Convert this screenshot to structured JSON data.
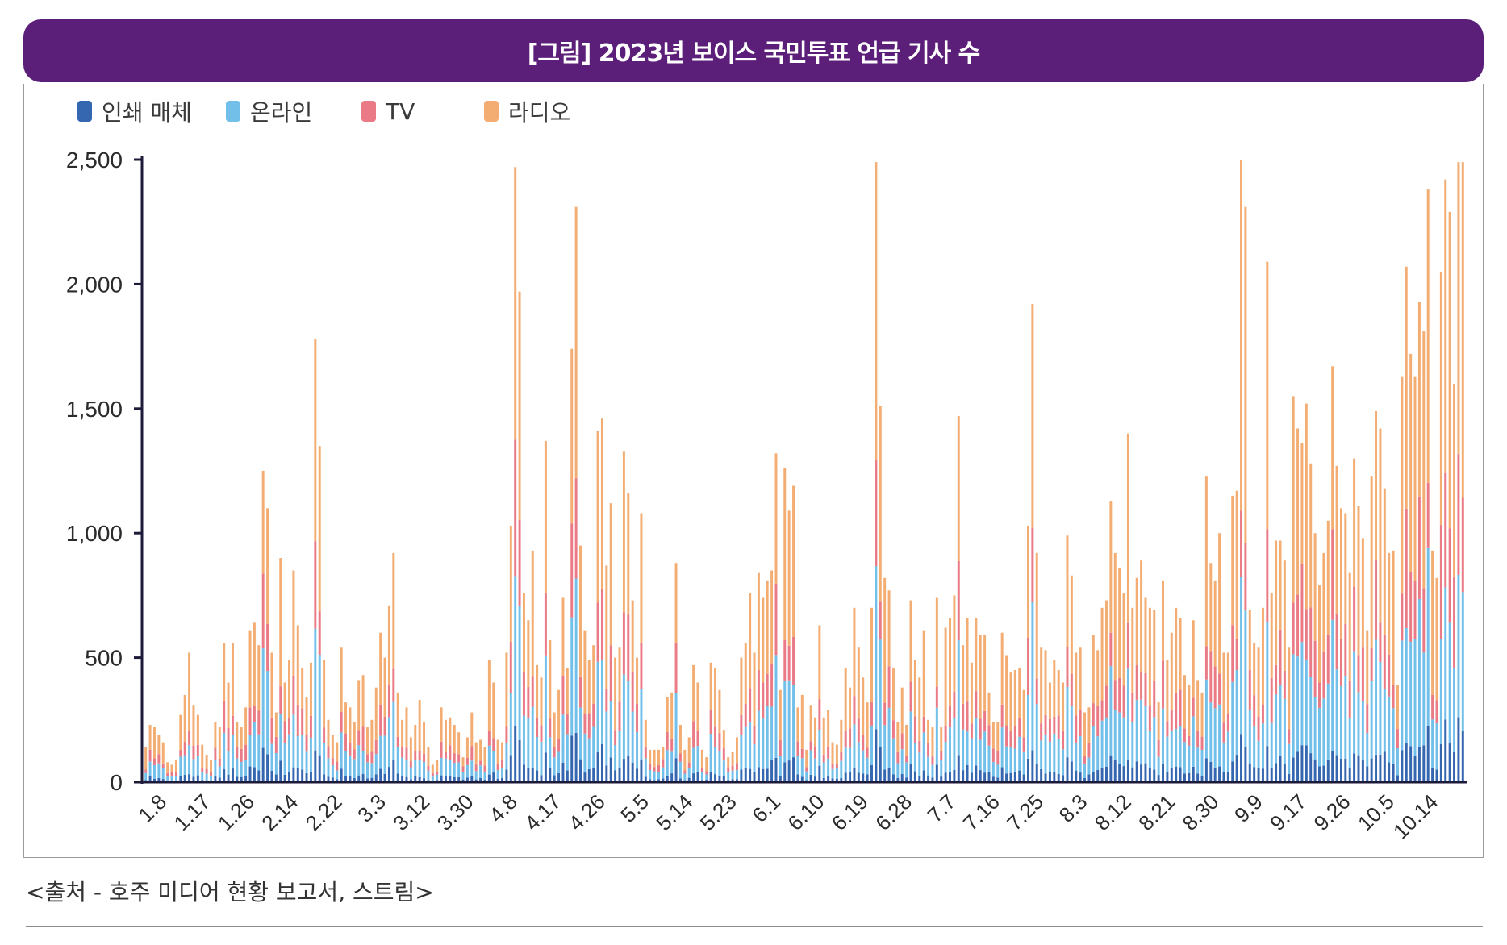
{
  "title": "[그림] 2023년 보이스 국민투표 언급 기사 수",
  "source": "<출처 - 호주 미디어 현황 보고서, 스트림>",
  "colors": {
    "banner": "#5c1f79",
    "print": "#3566b0",
    "online": "#72c0ea",
    "tv": "#ea7b86",
    "radio": "#f3ad72",
    "axis": "#1e1b3a"
  },
  "chart_data": {
    "type": "bar",
    "stacked": true,
    "x_tick_labels": [
      "1.8",
      "1.17",
      "1.26",
      "2.14",
      "2.22",
      "3.3",
      "3.12",
      "3.30",
      "4.8",
      "4.17",
      "4.26",
      "5.5",
      "5.14",
      "5.23",
      "6.1",
      "6.10",
      "6.19",
      "6.28",
      "7.7",
      "7.16",
      "7.25",
      "8.3",
      "8.12",
      "8.21",
      "8.30",
      "9.9",
      "9.17",
      "9.26",
      "10.5",
      "10.14"
    ],
    "y_ticks": [
      0,
      500,
      1000,
      1500,
      2000,
      2500
    ],
    "y_tick_labels": [
      "0",
      "500",
      "1,000",
      "1,500",
      "2,000",
      "2,500"
    ],
    "ylim": [
      0,
      2500
    ],
    "legend": [
      {
        "label": "인쇄 매체",
        "color": "#3566b0"
      },
      {
        "label": "온라인",
        "color": "#72c0ea"
      },
      {
        "label": "TV",
        "color": "#ea7b86"
      },
      {
        "label": "라디오",
        "color": "#f3ad72"
      }
    ],
    "legend_position": "top-left",
    "grid": false,
    "daily_totals_approx": [
      140,
      230,
      220,
      190,
      160,
      80,
      70,
      90,
      270,
      350,
      520,
      310,
      270,
      150,
      110,
      90,
      240,
      220,
      560,
      400,
      560,
      240,
      220,
      300,
      610,
      640,
      550,
      1250,
      1100,
      520,
      280,
      900,
      400,
      490,
      850,
      630,
      460,
      340,
      480,
      1780,
      1350,
      490,
      250,
      190,
      160,
      540,
      320,
      300,
      240,
      410,
      430,
      220,
      250,
      380,
      600,
      500,
      710,
      920,
      360,
      250,
      300,
      180,
      230,
      330,
      240,
      140,
      70,
      90,
      300,
      250,
      260,
      230,
      200,
      100,
      180,
      280,
      160,
      170,
      140,
      490,
      400,
      170,
      160,
      520,
      1030,
      2470,
      1970,
      760,
      650,
      930,
      470,
      420,
      1370,
      570,
      280,
      370,
      740,
      460,
      1740,
      2310,
      950,
      610,
      490,
      550,
      1410,
      1460,
      870,
      1120,
      500,
      540,
      1330,
      1160,
      730,
      500,
      1080,
      250,
      130,
      130,
      130,
      140,
      340,
      360,
      880,
      230,
      130,
      180,
      470,
      400,
      130,
      100,
      480,
      460,
      370,
      210,
      100,
      120,
      180,
      500,
      560,
      760,
      520,
      840,
      740,
      810,
      850,
      1320,
      370,
      1260,
      1090,
      1190,
      300,
      350,
      130,
      310,
      260,
      630,
      260,
      290,
      160,
      150,
      250,
      460,
      380,
      700,
      540,
      420,
      320,
      700,
      2490,
      1510,
      820,
      770,
      460,
      240,
      380,
      230,
      730,
      490,
      420,
      610,
      250,
      220,
      740,
      220,
      620,
      660,
      750,
      1470,
      550,
      660,
      480,
      660,
      590,
      590,
      360,
      240,
      240,
      600,
      510,
      440,
      450,
      460,
      370,
      1030,
      1920,
      920,
      540,
      530,
      400,
      490,
      450,
      400,
      990,
      830,
      520,
      540,
      280,
      300,
      590,
      530,
      700,
      730,
      1130,
      920,
      860,
      760,
      1400,
      700,
      820,
      890,
      740,
      700,
      690,
      320,
      810,
      490,
      600,
      700,
      660,
      430,
      390,
      650,
      410,
      360,
      1230,
      880,
      810,
      1000,
      520,
      520,
      1150,
      1170,
      2500,
      2310,
      690,
      560,
      540,
      700,
      2090,
      760,
      970,
      970,
      890,
      540,
      1550,
      1420,
      1360,
      1520,
      1280,
      1000,
      790,
      920,
      1050,
      1670,
      1270,
      1100,
      1080,
      840,
      1300,
      1110,
      980,
      610,
      1230,
      1490,
      1420,
      1180,
      920,
      930,
      390,
      1630,
      2070,
      1720,
      1630,
      1930,
      1810,
      2380,
      930,
      820,
      2050,
      2420,
      2290,
      1600,
      2490,
      2490
    ]
  }
}
